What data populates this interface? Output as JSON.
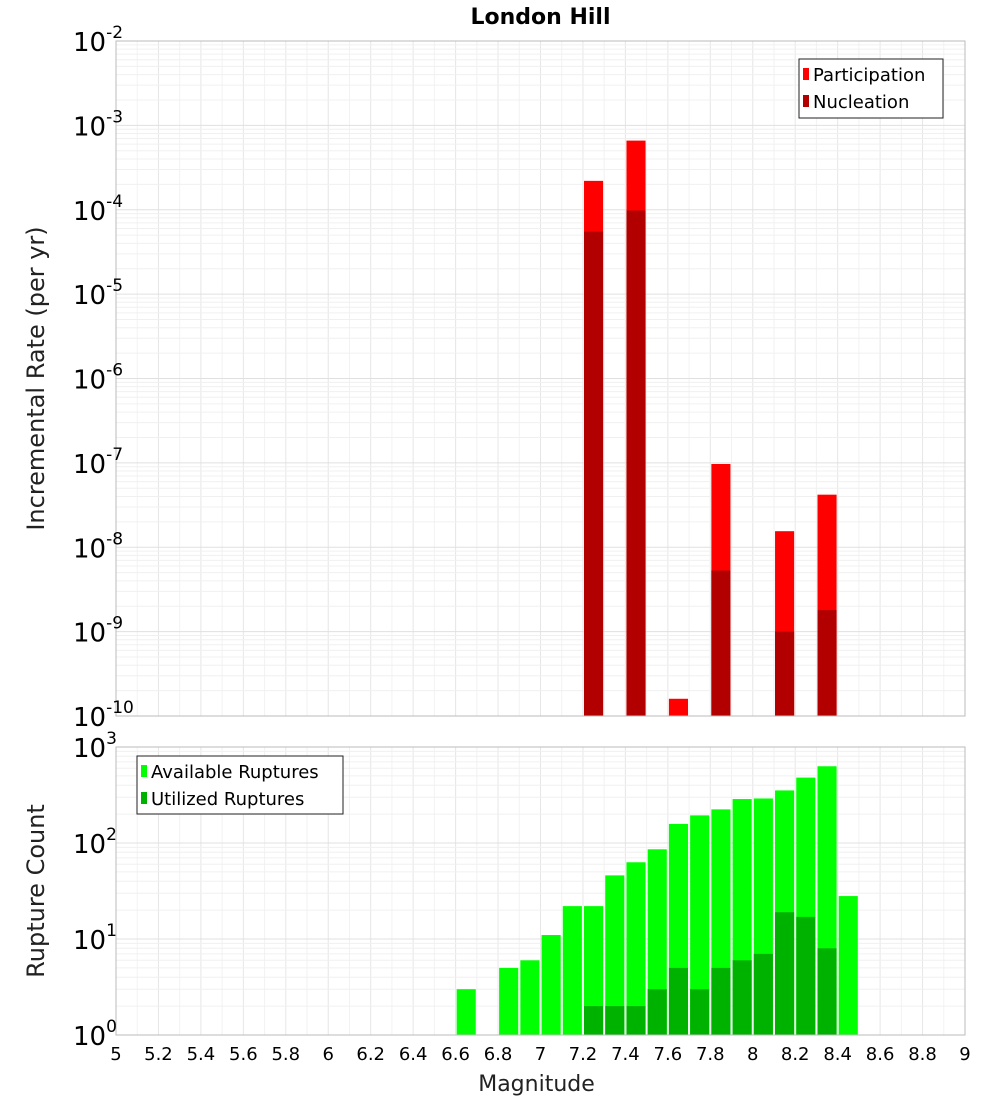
{
  "chart_data": [
    {
      "type": "bar",
      "title": "London Hill",
      "ylabel": "Incremental Rate (per yr)",
      "xlabel": "",
      "x_range": [
        5,
        9
      ],
      "y_scale": "log",
      "y_exponents": [
        -10,
        -9,
        -8,
        -7,
        -6,
        -5,
        -4,
        -3,
        -2
      ],
      "grid": true,
      "legend_position": "top-right",
      "bar_width": 0.09,
      "series": [
        {
          "name": "Participation",
          "color": "#ff0000",
          "x": [
            7.25,
            7.45,
            7.65,
            7.85,
            8.15,
            8.35
          ],
          "values": [
            0.00022,
            0.00066,
            1.6e-10,
            9.7e-08,
            1.55e-08,
            4.2e-08
          ]
        },
        {
          "name": "Nucleation",
          "color": "#b20000",
          "x": [
            7.25,
            7.45,
            7.85,
            8.15,
            8.35
          ],
          "values": [
            5.5e-05,
            9.8e-05,
            5.3e-09,
            1e-09,
            1.8e-09
          ]
        }
      ]
    },
    {
      "type": "bar",
      "title": "",
      "ylabel": "Rupture Count",
      "xlabel": "Magnitude",
      "x_range": [
        5,
        9
      ],
      "x_ticks": [
        "5",
        "5.2",
        "5.4",
        "5.6",
        "5.8",
        "6",
        "6.2",
        "6.4",
        "6.6",
        "6.8",
        "7",
        "7.2",
        "7.4",
        "7.6",
        "7.8",
        "8",
        "8.2",
        "8.4",
        "8.6",
        "8.8",
        "9"
      ],
      "y_scale": "log",
      "y_exponents": [
        0,
        1,
        2,
        3
      ],
      "grid": true,
      "legend_position": "top-left",
      "bar_width": 0.09,
      "series": [
        {
          "name": "Available Ruptures",
          "color": "#00ff00",
          "x": [
            6.65,
            6.85,
            6.95,
            7.05,
            7.15,
            7.25,
            7.35,
            7.45,
            7.55,
            7.65,
            7.75,
            7.85,
            7.95,
            8.05,
            8.15,
            8.25,
            8.35,
            8.45
          ],
          "values": [
            3,
            5,
            6,
            11,
            22,
            22,
            46,
            63,
            86,
            158,
            194,
            224,
            287,
            291,
            353,
            480,
            630,
            28
          ]
        },
        {
          "name": "Utilized Ruptures",
          "color": "#00b200",
          "x": [
            7.25,
            7.35,
            7.45,
            7.55,
            7.65,
            7.75,
            7.85,
            7.95,
            8.05,
            8.15,
            8.25,
            8.35
          ],
          "values": [
            2,
            2,
            2,
            3,
            5,
            3,
            5,
            6,
            7,
            19,
            17,
            8
          ]
        }
      ]
    }
  ]
}
